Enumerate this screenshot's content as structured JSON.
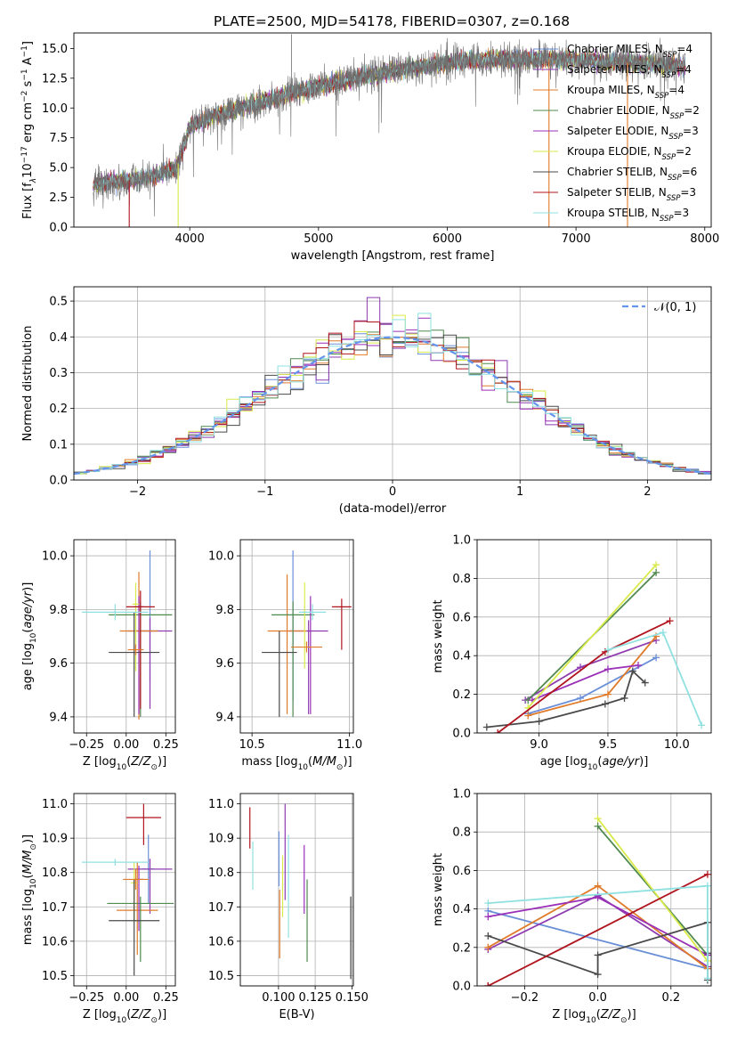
{
  "title": "PLATE=2500, MJD=54178, FIBERID=0307, z=0.168",
  "colors": {
    "chabrier_miles": "#6a8fd8",
    "salpeter_miles": "#8e3bb0",
    "kroupa_miles": "#e07b2a",
    "chabrier_elodie": "#4f8a4f",
    "salpeter_elodie": "#9a2fb8",
    "kroupa_elodie": "#d9ea4a",
    "chabrier_stelib": "#4a4a4a",
    "salpeter_stelib": "#b0141e",
    "kroupa_stelib": "#8fe0e0",
    "normal": "#6495ed",
    "grid": "#b0b0b0"
  },
  "chart_data": [
    {
      "id": "spectrum",
      "type": "line",
      "xlabel": "wavelength [Angstrom, rest frame]",
      "ylabel": "Flux [f_λ 10^-17 erg cm^-2 s^-1 A^-1]",
      "xlim": [
        3100,
        8050
      ],
      "ylim": [
        0,
        16.3
      ],
      "xticks": [
        "4000",
        "5000",
        "6000",
        "7000",
        "8000"
      ],
      "yticks": [
        "0.0",
        "2.5",
        "5.0",
        "7.5",
        "10.0",
        "12.5",
        "15.0"
      ],
      "grid": false,
      "legend_position": "top-right",
      "data_wavelength_range": [
        3250,
        7850
      ],
      "continuum": {
        "x": [
          3250,
          3500,
          3700,
          3900,
          4000,
          4200,
          4500,
          4800,
          5000,
          5300,
          5600,
          5900,
          6200,
          6500,
          6800,
          7100,
          7400,
          7700,
          7850
        ],
        "y": [
          3.6,
          3.9,
          4.2,
          5.0,
          8.4,
          9.4,
          10.3,
          11.3,
          11.8,
          12.5,
          13.2,
          13.6,
          14.0,
          14.1,
          14.1,
          14.0,
          13.8,
          13.6,
          13.5
        ]
      },
      "series": [
        {
          "name": "Chabrier MILES, N_SSP=4",
          "label_main": "Chabrier MILES, N",
          "label_sub": "SSP",
          "label_tail": "=4",
          "color_key": "chabrier_miles"
        },
        {
          "name": "Salpeter MILES, N_SSP=4",
          "label_main": "Salpeter MILES, N",
          "label_sub": "SSP",
          "label_tail": "=4",
          "color_key": "salpeter_miles"
        },
        {
          "name": "Kroupa MILES, N_SSP=4",
          "label_main": "Kroupa MILES, N",
          "label_sub": "SSP",
          "label_tail": "=4",
          "color_key": "kroupa_miles"
        },
        {
          "name": "Chabrier ELODIE, N_SSP=2",
          "label_main": "Chabrier ELODIE, N",
          "label_sub": "SSP",
          "label_tail": "=2",
          "color_key": "chabrier_elodie"
        },
        {
          "name": "Salpeter ELODIE, N_SSP=3",
          "label_main": "Salpeter ELODIE, N",
          "label_sub": "SSP",
          "label_tail": "=3",
          "color_key": "salpeter_elodie"
        },
        {
          "name": "Kroupa ELODIE, N_SSP=2",
          "label_main": "Kroupa ELODIE, N",
          "label_sub": "SSP",
          "label_tail": "=2",
          "color_key": "kroupa_elodie"
        },
        {
          "name": "Chabrier STELIB, N_SSP=6",
          "label_main": "Chabrier STELIB, N",
          "label_sub": "SSP",
          "label_tail": "=6",
          "color_key": "chabrier_stelib"
        },
        {
          "name": "Salpeter STELIB, N_SSP=3",
          "label_main": "Salpeter STELIB, N",
          "label_sub": "SSP",
          "label_tail": "=3",
          "color_key": "salpeter_stelib"
        },
        {
          "name": "Kroupa STELIB, N_SSP=3",
          "label_main": "Kroupa STELIB, N",
          "label_sub": "SSP",
          "label_tail": "=3",
          "color_key": "kroupa_stelib"
        }
      ],
      "dropouts": [
        {
          "x": 3530,
          "color_key": "salpeter_stelib"
        },
        {
          "x": 3910,
          "color_key": "kroupa_elodie"
        },
        {
          "x": 6790,
          "color_key": "kroupa_miles"
        },
        {
          "x": 7400,
          "color_key": "kroupa_miles"
        }
      ]
    },
    {
      "id": "residuals",
      "type": "histogram",
      "xlabel": "(data-model)/error",
      "ylabel": "Normed distribution",
      "xlim": [
        -2.5,
        2.5
      ],
      "ylim": [
        0,
        0.54
      ],
      "xticks": [
        "−2",
        "−1",
        "0",
        "1",
        "2"
      ],
      "yticks": [
        "0.0",
        "0.1",
        "0.2",
        "0.3",
        "0.4",
        "0.5"
      ],
      "grid": true,
      "legend_position": "top-right",
      "legend_label": "𝒩(0, 1)",
      "bin_width": 0.1,
      "bins_from": -2.5,
      "model_series_order": [
        "chabrier_miles",
        "salpeter_miles",
        "kroupa_miles",
        "chabrier_elodie",
        "salpeter_elodie",
        "kroupa_elodie",
        "chabrier_stelib",
        "salpeter_stelib",
        "kroupa_stelib"
      ],
      "peak_values": [
        {
          "x": -0.15,
          "y": 0.51,
          "color_key": "salpeter_miles"
        },
        {
          "x": 0.05,
          "y": 0.46,
          "color_key": "kroupa_elodie"
        },
        {
          "x": -0.35,
          "y": 0.38,
          "color_key": "kroupa_miles"
        }
      ]
    },
    {
      "id": "age_vs_Z",
      "type": "errorbar",
      "xlabel": "Z [log10(Z/Z⊙)]",
      "ylabel": "age [log10(age/yr)]",
      "xlim": [
        -0.33,
        0.31
      ],
      "ylim": [
        9.34,
        10.06
      ],
      "xticks": [
        "−0.25",
        "0.00",
        "0.25"
      ],
      "yticks": [
        "9.4",
        "9.6",
        "9.8",
        "10.0"
      ],
      "grid": true,
      "points": [
        {
          "color_key": "chabrier_miles",
          "x": 0.15,
          "xerr": 0.05,
          "y": 9.72,
          "yerr_lo": 0.19,
          "yerr_hi": 0.3
        },
        {
          "color_key": "salpeter_miles",
          "x": 0.15,
          "xerr": 0.14,
          "y": 9.72,
          "yerr_lo": 0.29,
          "yerr_hi": 0.05
        },
        {
          "color_key": "kroupa_miles",
          "x": 0.08,
          "xerr": 0.12,
          "y": 9.72,
          "yerr_lo": 0.33,
          "yerr_hi": 0.22
        },
        {
          "color_key": "chabrier_elodie",
          "x": 0.09,
          "xerr": 0.2,
          "y": 9.78,
          "yerr_lo": 0.38,
          "yerr_hi": 0.05
        },
        {
          "color_key": "salpeter_elodie",
          "x": 0.08,
          "xerr": 0.03,
          "y": 9.81,
          "yerr_lo": 0.4,
          "yerr_hi": 0.04
        },
        {
          "color_key": "kroupa_elodie",
          "x": 0.06,
          "xerr": 0.02,
          "y": 9.82,
          "yerr_lo": 0.25,
          "yerr_hi": 0.08
        },
        {
          "color_key": "chabrier_stelib",
          "x": 0.05,
          "xerr": 0.16,
          "y": 9.64,
          "yerr_lo": 0.24,
          "yerr_hi": 0.15
        },
        {
          "color_key": "salpeter_stelib",
          "x": 0.09,
          "xerr": 0.09,
          "y": 9.81,
          "yerr_lo": 0.38,
          "yerr_hi": 0.06
        },
        {
          "color_key": "kroupa_stelib",
          "x": -0.07,
          "xerr": 0.21,
          "y": 9.79,
          "yerr_lo": 0.03,
          "yerr_hi": 0.03
        },
        {
          "color_key": "kroupa_miles",
          "x": 0.06,
          "xerr": 0.05,
          "y": 9.65,
          "yerr_lo": 0.02,
          "yerr_hi": 0.02
        }
      ]
    },
    {
      "id": "age_vs_mass",
      "type": "errorbar",
      "xlabel": "mass [log10(M/M⊙)]",
      "ylabel": "",
      "xlim": [
        10.44,
        11.02
      ],
      "ylim": [
        9.34,
        10.06
      ],
      "xticks": [
        "10.5",
        "11.0"
      ],
      "yticks": [
        "9.4",
        "9.6",
        "9.8",
        "10.0"
      ],
      "grid": true,
      "points": [
        {
          "color_key": "chabrier_miles",
          "x": 10.71,
          "xerr": 0.0,
          "y": 9.76,
          "yerr_lo": 0.3,
          "yerr_hi": 0.26
        },
        {
          "color_key": "salpeter_miles",
          "x": 10.79,
          "xerr": 0.1,
          "y": 9.72,
          "yerr_lo": 0.31,
          "yerr_hi": 0.04
        },
        {
          "color_key": "kroupa_miles",
          "x": 10.68,
          "xerr": 0.1,
          "y": 9.72,
          "yerr_lo": 0.31,
          "yerr_hi": 0.21
        },
        {
          "color_key": "chabrier_elodie",
          "x": 10.71,
          "xerr": 0.11,
          "y": 9.78,
          "yerr_lo": 0.38,
          "yerr_hi": 0.05
        },
        {
          "color_key": "salpeter_elodie",
          "x": 10.8,
          "xerr": 0.0,
          "y": 9.81,
          "yerr_lo": 0.4,
          "yerr_hi": 0.04
        },
        {
          "color_key": "kroupa_elodie",
          "x": 10.77,
          "xerr": 0.0,
          "y": 9.79,
          "yerr_lo": 0.21,
          "yerr_hi": 0.11
        },
        {
          "color_key": "chabrier_stelib",
          "x": 10.64,
          "xerr": 0.09,
          "y": 9.64,
          "yerr_lo": 0.24,
          "yerr_hi": 0.08
        },
        {
          "color_key": "salpeter_stelib",
          "x": 10.96,
          "xerr": 0.05,
          "y": 9.81,
          "yerr_lo": 0.16,
          "yerr_hi": 0.03
        },
        {
          "color_key": "kroupa_stelib",
          "x": 10.81,
          "xerr": 0.07,
          "y": 9.79,
          "yerr_lo": 0.03,
          "yerr_hi": 0.03
        },
        {
          "color_key": "kroupa_miles",
          "x": 10.78,
          "xerr": 0.08,
          "y": 9.66,
          "yerr_lo": 0.02,
          "yerr_hi": 0.02
        }
      ]
    },
    {
      "id": "massweight_vs_age",
      "type": "line",
      "xlabel": "age [log10(age/yr)]",
      "ylabel": "mass weight",
      "xlim": [
        8.55,
        10.25
      ],
      "ylim": [
        0,
        1
      ],
      "xticks": [
        "9.0",
        "9.5",
        "10.0"
      ],
      "yticks": [
        "0.0",
        "0.2",
        "0.4",
        "0.6",
        "0.8",
        "1.0"
      ],
      "grid": true,
      "series": [
        {
          "color_key": "chabrier_miles",
          "x": [
            8.92,
            9.3,
            9.85
          ],
          "y": [
            0.1,
            0.18,
            0.39
          ]
        },
        {
          "color_key": "salpeter_miles",
          "x": [
            8.9,
            9.3,
            9.85
          ],
          "y": [
            0.17,
            0.34,
            0.48
          ]
        },
        {
          "color_key": "kroupa_miles",
          "x": [
            8.92,
            9.5,
            9.85
          ],
          "y": [
            0.09,
            0.2,
            0.5
          ]
        },
        {
          "color_key": "chabrier_elodie",
          "x": [
            8.92,
            9.85
          ],
          "y": [
            0.17,
            0.83
          ]
        },
        {
          "color_key": "salpeter_elodie",
          "x": [
            8.95,
            9.5,
            9.72
          ],
          "y": [
            0.17,
            0.33,
            0.35
          ]
        },
        {
          "color_key": "kroupa_elodie",
          "x": [
            8.92,
            9.85
          ],
          "y": [
            0.13,
            0.87
          ]
        },
        {
          "color_key": "chabrier_stelib",
          "x": [
            8.62,
            9.0,
            9.48,
            9.62,
            9.68,
            9.77
          ],
          "y": [
            0.03,
            0.06,
            0.15,
            0.18,
            0.32,
            0.26
          ]
        },
        {
          "color_key": "salpeter_stelib",
          "x": [
            8.7,
            9.48,
            9.95
          ],
          "y": [
            0.0,
            0.42,
            0.58
          ]
        },
        {
          "color_key": "kroupa_stelib",
          "x": [
            9.5,
            9.9,
            10.18
          ],
          "y": [
            0.43,
            0.52,
            0.04
          ]
        }
      ]
    },
    {
      "id": "mass_vs_Z",
      "type": "errorbar",
      "xlabel": "Z [log10(Z/Z⊙)]",
      "ylabel": "mass [log10(M/M⊙)]",
      "xlim": [
        -0.33,
        0.31
      ],
      "ylim": [
        10.47,
        11.03
      ],
      "xticks": [
        "−0.25",
        "0.00",
        "0.25"
      ],
      "yticks": [
        "10.5",
        "10.6",
        "10.7",
        "10.8",
        "10.9",
        "11.0"
      ],
      "grid": true,
      "points": [
        {
          "color_key": "chabrier_miles",
          "x": 0.14,
          "xerr": 0.04,
          "y": 10.81,
          "yerr_lo": 0.1,
          "yerr_hi": 0.1
        },
        {
          "color_key": "salpeter_miles",
          "x": 0.15,
          "xerr": 0.14,
          "y": 10.81,
          "yerr_lo": 0.13,
          "yerr_hi": 0.03
        },
        {
          "color_key": "kroupa_miles",
          "x": 0.07,
          "xerr": 0.13,
          "y": 10.69,
          "yerr_lo": 0.13,
          "yerr_hi": 0.14
        },
        {
          "color_key": "chabrier_elodie",
          "x": 0.09,
          "xerr": 0.21,
          "y": 10.71,
          "yerr_lo": 0.17,
          "yerr_hi": 0.02
        },
        {
          "color_key": "salpeter_elodie",
          "x": 0.08,
          "xerr": 0.03,
          "y": 10.78,
          "yerr_lo": 0.15,
          "yerr_hi": 0.04
        },
        {
          "color_key": "kroupa_elodie",
          "x": 0.05,
          "xerr": 0.02,
          "y": 10.77,
          "yerr_lo": 0.11,
          "yerr_hi": 0.06
        },
        {
          "color_key": "chabrier_stelib",
          "x": 0.05,
          "xerr": 0.16,
          "y": 10.66,
          "yerr_lo": 0.16,
          "yerr_hi": 0.12
        },
        {
          "color_key": "salpeter_stelib",
          "x": 0.11,
          "xerr": 0.11,
          "y": 10.96,
          "yerr_lo": 0.08,
          "yerr_hi": 0.04
        },
        {
          "color_key": "kroupa_stelib",
          "x": -0.07,
          "xerr": 0.21,
          "y": 10.83,
          "yerr_lo": 0.01,
          "yerr_hi": 0.01
        },
        {
          "color_key": "kroupa_miles",
          "x": 0.06,
          "xerr": 0.08,
          "y": 10.78,
          "yerr_lo": 0.03,
          "yerr_hi": 0.03
        }
      ]
    },
    {
      "id": "mass_vs_ebv",
      "type": "errorbar",
      "xlabel": "E(B-V)",
      "ylabel": "",
      "xlim": [
        0.074,
        0.151
      ],
      "ylim": [
        10.47,
        11.03
      ],
      "xticks": [
        "0.100",
        "0.125",
        "0.150"
      ],
      "yticks": [
        "10.5",
        "10.6",
        "10.7",
        "10.8",
        "10.9",
        "11.0"
      ],
      "grid": true,
      "points": [
        {
          "color_key": "salpeter_stelib",
          "x": 0.0805,
          "y": 10.93,
          "yerr_lo": 0.06,
          "yerr_hi": 0.06
        },
        {
          "color_key": "kroupa_stelib",
          "x": 0.0825,
          "y": 10.82,
          "yerr_lo": 0.07,
          "yerr_hi": 0.07
        },
        {
          "color_key": "chabrier_miles",
          "x": 0.1003,
          "y": 10.84,
          "yerr_lo": 0.08,
          "yerr_hi": 0.08
        },
        {
          "color_key": "kroupa_miles",
          "x": 0.1008,
          "y": 10.65,
          "yerr_lo": 0.1,
          "yerr_hi": 0.1
        },
        {
          "color_key": "kroupa_elodie",
          "x": 0.1028,
          "y": 10.76,
          "yerr_lo": 0.09,
          "yerr_hi": 0.09
        },
        {
          "color_key": "salpeter_miles",
          "x": 0.1045,
          "y": 10.86,
          "yerr_lo": 0.14,
          "yerr_hi": 0.14
        },
        {
          "color_key": "kroupa_stelib",
          "x": 0.1068,
          "y": 10.76,
          "yerr_lo": 0.15,
          "yerr_hi": 0.15
        },
        {
          "color_key": "salpeter_elodie",
          "x": 0.1175,
          "y": 10.78,
          "yerr_lo": 0.1,
          "yerr_hi": 0.1
        },
        {
          "color_key": "chabrier_elodie",
          "x": 0.1195,
          "y": 10.66,
          "yerr_lo": 0.12,
          "yerr_hi": 0.12
        },
        {
          "color_key": "chabrier_stelib",
          "x": 0.1492,
          "y": 10.61,
          "yerr_lo": 0.12,
          "yerr_hi": 0.12
        }
      ]
    },
    {
      "id": "massweight_vs_Z",
      "type": "line",
      "xlabel": "Z [log10(Z/Z⊙)]",
      "ylabel": "mass weight",
      "xlim": [
        -0.33,
        0.31
      ],
      "ylim": [
        0,
        1
      ],
      "xticks": [
        "−0.2",
        "0.0",
        "0.2"
      ],
      "yticks": [
        "0.0",
        "0.2",
        "0.4",
        "0.6",
        "0.8",
        "1.0"
      ],
      "grid": true,
      "series": [
        {
          "color_key": "chabrier_miles",
          "x": [
            -0.3,
            0.3
          ],
          "y": [
            0.39,
            0.09
          ]
        },
        {
          "color_key": "salpeter_miles",
          "x": [
            -0.3,
            0.0,
            0.3
          ],
          "y": [
            0.19,
            0.47,
            0.1
          ]
        },
        {
          "color_key": "kroupa_miles",
          "x": [
            -0.3,
            0.0,
            0.3
          ],
          "y": [
            0.2,
            0.52,
            0.09
          ]
        },
        {
          "color_key": "chabrier_elodie",
          "x": [
            0.0,
            0.3
          ],
          "y": [
            0.83,
            0.16
          ]
        },
        {
          "color_key": "salpeter_elodie",
          "x": [
            -0.3,
            0.0,
            0.3
          ],
          "y": [
            0.36,
            0.46,
            0.16
          ]
        },
        {
          "color_key": "kroupa_elodie",
          "x": [
            0.0,
            0.3
          ],
          "y": [
            0.87,
            0.13
          ]
        },
        {
          "color_key": "chabrier_stelib",
          "x": [
            -0.3,
            0.0,
            0.0,
            0.3,
            0.3,
            0.3
          ],
          "y": [
            0.26,
            0.06,
            0.16,
            0.33,
            0.17,
            0.03
          ]
        },
        {
          "color_key": "salpeter_stelib",
          "x": [
            -0.3,
            -0.3,
            0.3
          ],
          "y": [
            0.0,
            0.0,
            0.58
          ]
        },
        {
          "color_key": "kroupa_stelib",
          "x": [
            -0.3,
            0.3,
            0.3
          ],
          "y": [
            0.43,
            0.52,
            0.04
          ]
        }
      ]
    }
  ]
}
